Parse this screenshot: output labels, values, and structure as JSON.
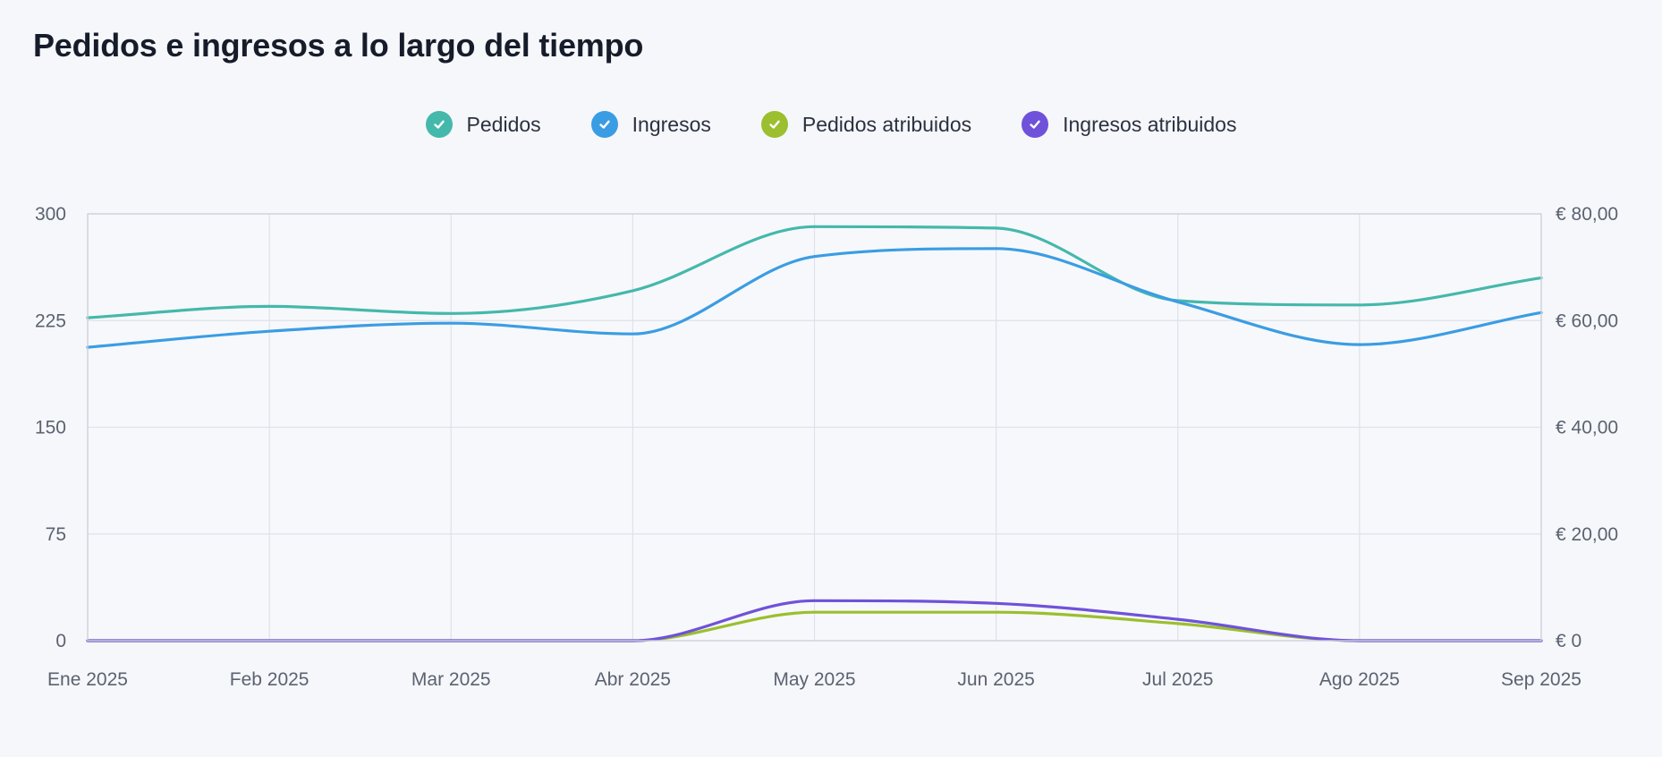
{
  "chart_data": {
    "type": "line",
    "title": "Pedidos e ingresos a lo largo del tiempo",
    "categories": [
      "Ene 2025",
      "Feb 2025",
      "Mar 2025",
      "Abr 2025",
      "May 2025",
      "Jun 2025",
      "Jul 2025",
      "Ago 2025",
      "Sep 2025"
    ],
    "y_left": {
      "ticks": [
        "300",
        "225",
        "150",
        "75",
        "0"
      ],
      "ylim": [
        0,
        300
      ]
    },
    "y_right": {
      "ticks": [
        "€ 80,00",
        "€ 60,00",
        "€ 40,00",
        "€ 20,00",
        "€ 0"
      ],
      "ylim": [
        0,
        80
      ]
    },
    "grid": true,
    "legend_position": "top-center",
    "series": [
      {
        "name": "Pedidos",
        "axis": "left",
        "color": "#45b8ac",
        "values": [
          227,
          235,
          230,
          246,
          291,
          290,
          239,
          236,
          255
        ]
      },
      {
        "name": "Ingresos",
        "axis": "right",
        "color": "#3a9de3",
        "values": [
          55,
          58,
          59.5,
          57.5,
          72,
          73.5,
          63.5,
          55.5,
          61.5
        ]
      },
      {
        "name": "Pedidos atribuidos",
        "axis": "left",
        "color": "#9bbf2e",
        "values": [
          0,
          0,
          0,
          0,
          20,
          20,
          12,
          0,
          0
        ]
      },
      {
        "name": "Ingresos atribuidos",
        "axis": "right",
        "color": "#6f52d9",
        "values": [
          0,
          0,
          0,
          0,
          7.5,
          7,
          4,
          0,
          0
        ]
      }
    ]
  }
}
